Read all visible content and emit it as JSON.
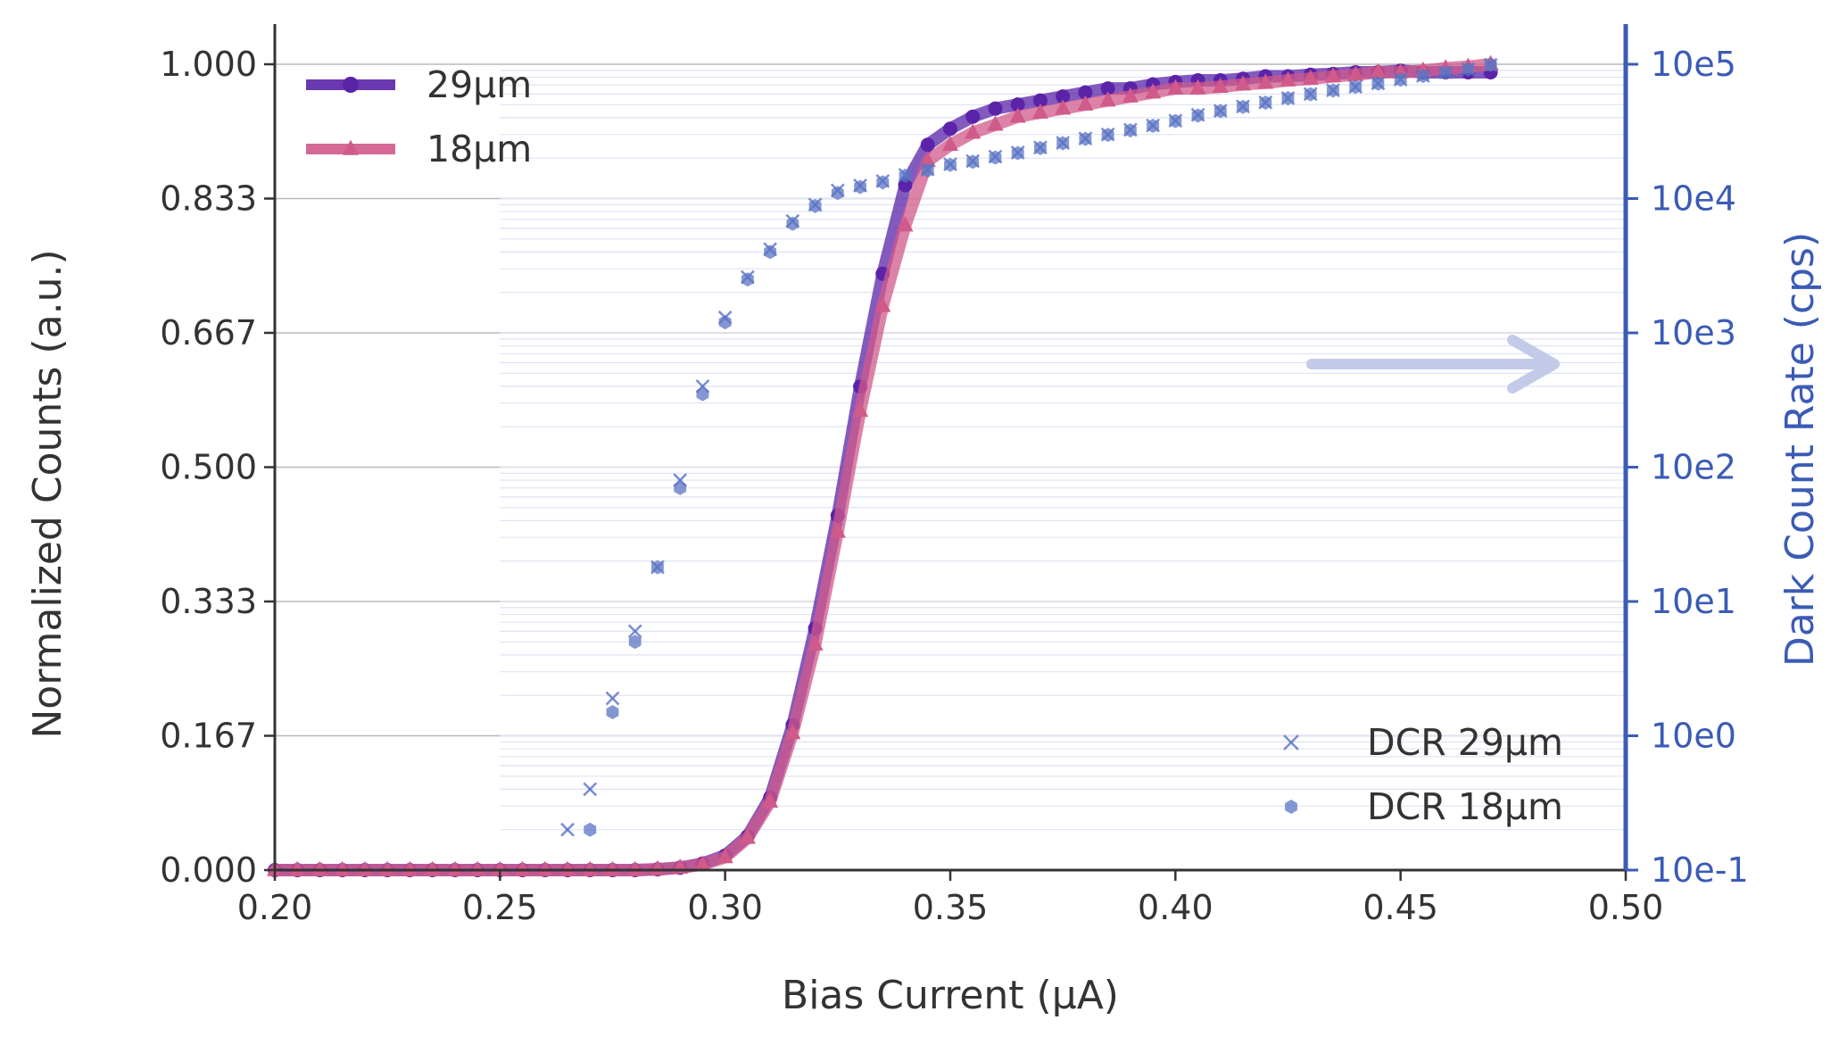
{
  "chart_data": {
    "type": "line",
    "x_axis": {
      "label": "Bias Current (μA)",
      "lim": [
        0.2,
        0.5
      ],
      "ticks": [
        "0.20",
        "0.25",
        "0.30",
        "0.35",
        "0.40",
        "0.45",
        "0.50"
      ]
    },
    "y_left": {
      "label": "Normalized Counts (a.u.)",
      "lim": [
        0,
        1
      ],
      "ticks": [
        "0.000",
        "0.167",
        "0.333",
        "0.500",
        "0.667",
        "0.833",
        "1.000"
      ],
      "grid": true
    },
    "y_right": {
      "label": "Dark Count Rate (cps)",
      "scale": "log",
      "lim": [
        0.1,
        100000
      ],
      "ticks": [
        "10e-1",
        "10e0",
        "10e1",
        "10e2",
        "10e3",
        "10e4",
        "10e5"
      ],
      "color": "#3b5bb5"
    },
    "annotation": "arrow pointing right toward right axis",
    "legend_top_left": [
      "29μm",
      "18μm"
    ],
    "legend_bottom_right": [
      "DCR 29μm",
      "DCR 18μm"
    ],
    "x": [
      0.2,
      0.205,
      0.21,
      0.215,
      0.22,
      0.225,
      0.23,
      0.235,
      0.24,
      0.245,
      0.25,
      0.255,
      0.26,
      0.265,
      0.27,
      0.275,
      0.28,
      0.285,
      0.29,
      0.295,
      0.3,
      0.305,
      0.31,
      0.315,
      0.32,
      0.325,
      0.33,
      0.335,
      0.34,
      0.345,
      0.35,
      0.355,
      0.36,
      0.365,
      0.37,
      0.375,
      0.38,
      0.385,
      0.39,
      0.395,
      0.4,
      0.405,
      0.41,
      0.415,
      0.42,
      0.425,
      0.43,
      0.435,
      0.44,
      0.445,
      0.45,
      0.455,
      0.46,
      0.465,
      0.47
    ],
    "series": [
      {
        "name": "29μm",
        "axis": "left",
        "color": "#5a23a8",
        "marker": "circle",
        "values": [
          0,
          0,
          0,
          0,
          0,
          0,
          0,
          0,
          0,
          0,
          0,
          0,
          0,
          0,
          0,
          0,
          0,
          0.001,
          0.003,
          0.008,
          0.018,
          0.042,
          0.09,
          0.18,
          0.3,
          0.44,
          0.6,
          0.74,
          0.85,
          0.9,
          0.92,
          0.935,
          0.945,
          0.95,
          0.955,
          0.96,
          0.965,
          0.97,
          0.97,
          0.975,
          0.978,
          0.98,
          0.98,
          0.982,
          0.985,
          0.985,
          0.987,
          0.988,
          0.99,
          0.99,
          0.992,
          0.99,
          0.99,
          0.99,
          0.99
        ]
      },
      {
        "name": "18μm",
        "axis": "left",
        "color": "#d05a8a",
        "marker": "triangle",
        "values": [
          0,
          0,
          0,
          0,
          0,
          0,
          0,
          0,
          0,
          0,
          0,
          0,
          0,
          0,
          0,
          0,
          0,
          0.001,
          0.003,
          0.007,
          0.016,
          0.04,
          0.085,
          0.17,
          0.28,
          0.42,
          0.57,
          0.7,
          0.8,
          0.88,
          0.9,
          0.915,
          0.925,
          0.935,
          0.94,
          0.945,
          0.95,
          0.955,
          0.96,
          0.965,
          0.97,
          0.97,
          0.972,
          0.975,
          0.977,
          0.98,
          0.982,
          0.985,
          0.987,
          0.99,
          0.99,
          0.992,
          0.995,
          0.997,
          1.0
        ]
      },
      {
        "name": "DCR 29μm",
        "axis": "right",
        "color": "#5b74c4",
        "marker": "x",
        "values": [
          null,
          null,
          null,
          null,
          null,
          null,
          null,
          null,
          null,
          null,
          null,
          null,
          null,
          0.2,
          0.4,
          1.9,
          6,
          18,
          80,
          400,
          1300,
          2600,
          4200,
          6800,
          9000,
          11500,
          12500,
          13500,
          15000,
          16500,
          18000,
          19000,
          20500,
          22000,
          24000,
          26000,
          28000,
          30000,
          32500,
          35000,
          38000,
          42000,
          45000,
          48500,
          52000,
          56000,
          60000,
          64000,
          68000,
          72000,
          77000,
          82000,
          87000,
          92000,
          99000
        ]
      },
      {
        "name": "DCR 18μm",
        "axis": "right",
        "color": "#5b74c4",
        "marker": "hexagon",
        "values": [
          null,
          null,
          null,
          null,
          null,
          null,
          null,
          null,
          null,
          null,
          null,
          null,
          null,
          null,
          0.2,
          1.5,
          5,
          18,
          70,
          350,
          1200,
          2500,
          4000,
          6500,
          8800,
          11000,
          12200,
          13200,
          14800,
          16200,
          17800,
          18800,
          20200,
          21800,
          23800,
          25800,
          27800,
          29800,
          32200,
          34800,
          37800,
          41500,
          44800,
          48200,
          51800,
          55800,
          59800,
          63800,
          67800,
          71800,
          76800,
          81800,
          86800,
          91800,
          99000
        ]
      }
    ]
  }
}
